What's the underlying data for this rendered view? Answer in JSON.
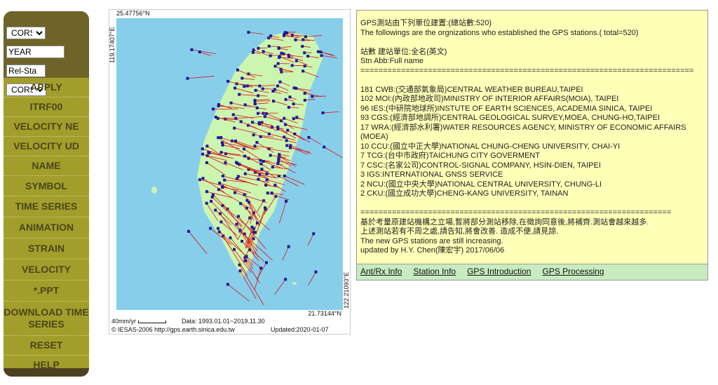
{
  "sidebar": {
    "network_select": "CORS",
    "time_input": "YEAR",
    "ref_input": "Rel-Sta",
    "ref_select": "CORS",
    "items": [
      "APPLY",
      "ITRF00",
      "VELOCITY NE",
      "VELOCITY UD",
      "NAME",
      "SYMBOL",
      "TIME SERIES",
      "ANIMATION",
      "STRAIN",
      "VELOCITY",
      "*.PPT",
      "DOWNLOAD TIME SERIES",
      "RESET",
      "HELP"
    ]
  },
  "map": {
    "north_lat": "25.47756°N",
    "south_lat": "21.73144°N",
    "west_lon": "119.17407°E",
    "east_lon": "122.21093°E",
    "scale_label": "40mm/yr",
    "data_range": "Data: 1993.01.01~2019.11.30",
    "copyright": "© IESAS-2006 http://gps.earth.sinica.edu.tw",
    "updated": "Updated:2020-01-07",
    "colors": {
      "ocean": "#87ceeb",
      "land": "#ccf5b0",
      "arrow": "#dd1111",
      "station": "#1a1a99"
    }
  },
  "info": {
    "lines": [
      "GPS測站由下列單位建置:(總站數:520)",
      "The followings are the orgnizations who established the GPS stations.( total=520)",
      "",
      "站數 建站單位:全名(英文)",
      "Stn Abb:Full name",
      "==========================================================================",
      "",
      "181 CWB:(交通部氣象局)CENTRAL WEATHER BUREAU,TAIPEI",
      "102 MOI:(內政部地政司)MINISTRY OF INTERIOR AFFAIRS(MOIA), TAIPEI",
      "96 IES:(中研院地球所)INSTUTE OF EARTH SCIENCES, ACADEMIA SINICA, TAIPEI",
      "93 CGS:(經濟部地調所)CENTRAL GEOLOGICAL SURVEY,MOEA, CHUNG-HO,TAIPEI",
      "17 WRA:(經濟部水利署)WATER RESOURCES AGENCY, MINISTRY OF ECONOMIC AFFAIRS (MOEA)",
      "10 CCU:(國立中正大學)NATIONAL CHUNG-CHENG UNIVERSITY, CHAI-YI",
      "7 TCG:(台中市政府)TAICHUNG CITY GOVERMENT",
      "7 CSC:(名家公司)CONTROL-SIGNAL COMPANY, HSIN-DIEN, TAIPEI",
      "3 IGS:INTERNATIONAL GNSS SERVICE",
      "2 NCU:(國立中央大學)NATIONAL CENTRAL UNIVERSITY, CHUNG-LI",
      "2 CKU:(國立成功大學)CHENG-KANG UNIVERSITY, TAINAN",
      "",
      "=====================================================================",
      "基於考量原建站機構之立場,暫將部分測站移除,在徵詢同意後,將補齊.測站會越來越多.",
      "上述測站若有不周之處,請告知,將會改善. 造成不便,請見諒.",
      "The new GPS stations are still increasing.",
      "updated by H.Y. Chen(陳宏宇) 2017/06/06"
    ],
    "links": [
      "Ant/Rx Info",
      "Station Info",
      "GPS Introduction",
      "GPS Processing"
    ]
  }
}
